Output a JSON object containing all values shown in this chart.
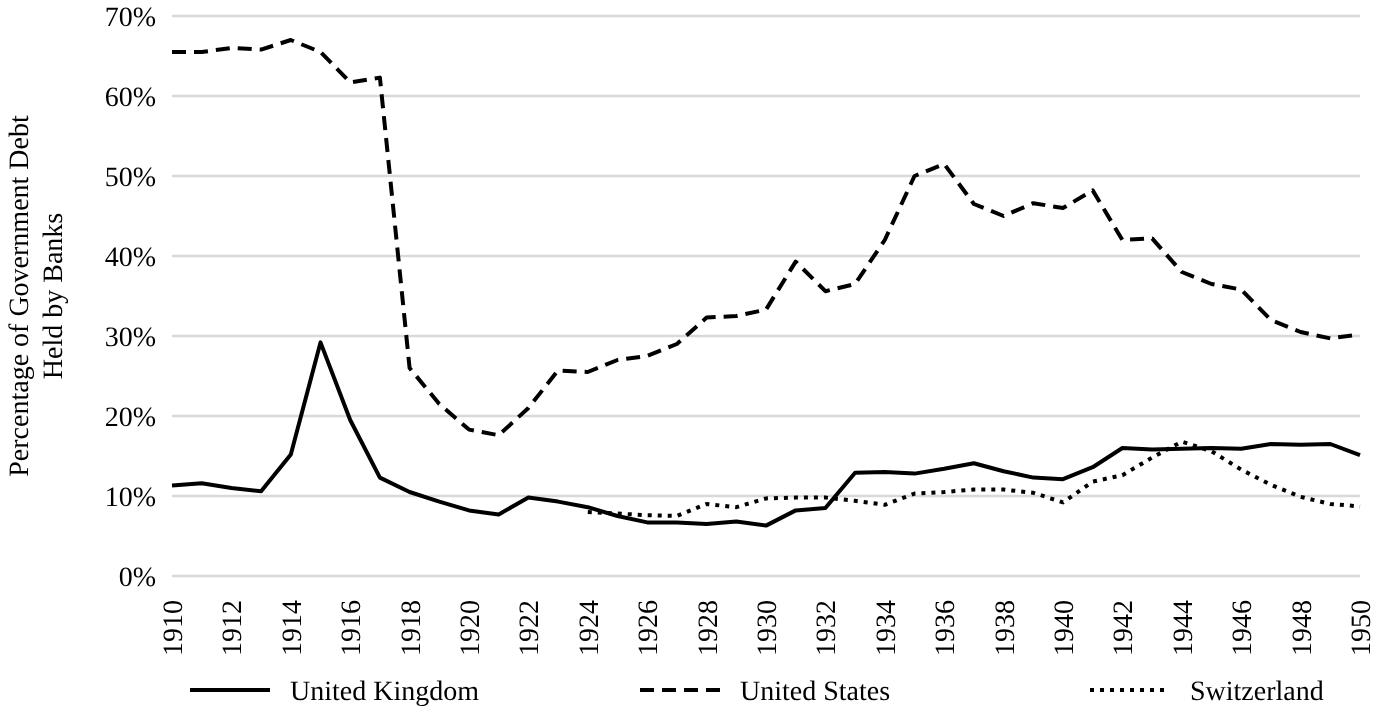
{
  "chart_data": {
    "type": "line",
    "ylabel": "Percentage of Government Debt Held by Banks",
    "categories": [
      "1910",
      null,
      "1912",
      null,
      "1914",
      null,
      "1916",
      null,
      "1918",
      null,
      "1920",
      null,
      "1922",
      null,
      "1924",
      null,
      "1926",
      null,
      "1928",
      null,
      "1930",
      null,
      "1932",
      null,
      "1934",
      null,
      "1936",
      null,
      "1938",
      null,
      "1940",
      null,
      "1942",
      null,
      "1944",
      null,
      "1946",
      null,
      "1948",
      null,
      "1950"
    ],
    "series": [
      {
        "name": "United Kingdom",
        "color": "#000000",
        "line_style": "solid",
        "values": [
          11.3,
          11.6,
          11,
          10.6,
          15.2,
          29.2,
          19.5,
          12.3,
          10.5,
          9.3,
          8.2,
          7.7,
          9.8,
          9.3,
          8.6,
          7.5,
          6.7,
          6.7,
          6.5,
          6.8,
          6.3,
          8.2,
          8.5,
          12.9,
          13,
          12.8,
          13.4,
          14.1,
          13.1,
          12.3,
          12.1,
          13.6,
          16,
          15.8,
          15.9,
          16,
          15.9,
          16.5,
          16.4,
          16.5,
          15.1
        ]
      },
      {
        "name": "United States",
        "color": "#000000",
        "line_style": "dashed",
        "values": [
          65.5,
          65.5,
          66,
          65.8,
          67,
          65.5,
          61.7,
          62.3,
          26,
          21.5,
          18.3,
          17.6,
          21,
          25.7,
          25.5,
          27,
          27.5,
          29,
          32.3,
          32.5,
          33.3,
          39.3,
          35.6,
          36.5,
          42,
          50,
          51.5,
          46.5,
          45,
          46.6,
          46,
          48.2,
          42,
          42.2,
          38,
          36.5,
          35.8,
          32,
          30.5,
          29.7,
          30.2
        ]
      },
      {
        "name": "Switzerland",
        "color": "#000000",
        "line_style": "dotted",
        "values": [
          null,
          null,
          null,
          null,
          null,
          null,
          null,
          null,
          null,
          null,
          null,
          null,
          null,
          null,
          8,
          7.8,
          7.6,
          7.5,
          9,
          8.6,
          9.7,
          9.8,
          9.8,
          9.4,
          8.9,
          10.3,
          10.5,
          10.8,
          10.8,
          10.4,
          9.2,
          11.8,
          12.6,
          14.8,
          16.8,
          15.6,
          13.3,
          11.4,
          9.9,
          9,
          8.7
        ]
      }
    ],
    "ylim": [
      0,
      70
    ],
    "yticks": [
      {
        "value": 0,
        "label": "0%"
      },
      {
        "value": 10,
        "label": "10%"
      },
      {
        "value": 20,
        "label": "20%"
      },
      {
        "value": 30,
        "label": "30%"
      },
      {
        "value": 40,
        "label": "40%"
      },
      {
        "value": 50,
        "label": "50%"
      },
      {
        "value": 60,
        "label": "60%"
      },
      {
        "value": 70,
        "label": "70%"
      }
    ],
    "grid": "y",
    "legend": "bottom",
    "marker": "none"
  }
}
